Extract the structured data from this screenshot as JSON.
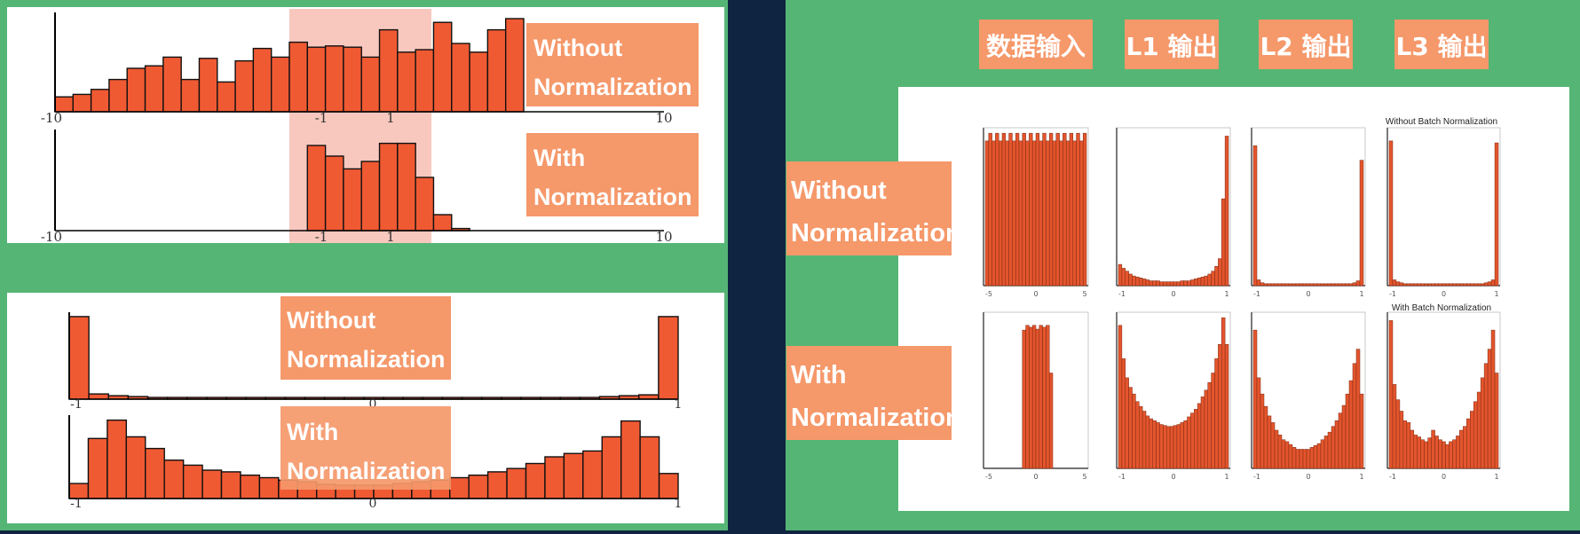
{
  "left": {
    "top_panel": {
      "without_label": [
        "Without",
        "Normalization"
      ],
      "with_label": [
        "With",
        "Normalization"
      ],
      "axis_ticks": [
        "-10",
        "-1",
        "1",
        "10"
      ],
      "without_values": [
        12,
        14,
        18,
        26,
        35,
        37,
        44,
        26,
        43,
        24,
        41,
        51,
        44,
        56,
        52,
        53,
        52,
        44,
        66,
        48,
        50,
        72,
        55,
        48,
        66,
        75
      ],
      "with_values": [
        0,
        0,
        0,
        0,
        0,
        0,
        0,
        0,
        0,
        0,
        0,
        0,
        0,
        0,
        80,
        70,
        58,
        65,
        82,
        82,
        50,
        15,
        2,
        0,
        0,
        0
      ],
      "highlight_range": [
        -1,
        1
      ]
    },
    "bottom_panel": {
      "without_label": [
        "Without",
        "Normalization"
      ],
      "with_label": [
        "With",
        "Normalization"
      ],
      "axis_ticks": [
        "-1",
        "0",
        "1"
      ],
      "without_values": [
        95,
        6,
        4,
        3,
        2,
        2,
        2,
        2,
        2,
        2,
        2,
        2,
        2,
        2,
        2,
        2,
        2,
        2,
        2,
        2,
        2,
        2,
        2,
        2,
        2,
        2,
        2,
        3,
        4,
        5,
        95
      ],
      "with_values": [
        18,
        72,
        94,
        74,
        60,
        46,
        40,
        34,
        32,
        28,
        25,
        22,
        20,
        17,
        16,
        16,
        16,
        18,
        20,
        22,
        25,
        28,
        32,
        36,
        42,
        50,
        54,
        57,
        74,
        93,
        74,
        30
      ]
    }
  },
  "right": {
    "column_headers": [
      "数据输入",
      "L1 输出",
      "L2 输出",
      "L3 输出"
    ],
    "row_labels": [
      [
        "Without",
        "Normalization"
      ],
      [
        "With",
        "Normalization"
      ]
    ],
    "row_titles": [
      "Without Batch Normalization",
      "With Batch Normalization"
    ],
    "input_ticks": [
      "-5",
      "0",
      "5"
    ],
    "layer_ticks": [
      "-1",
      "0",
      "1"
    ],
    "chart_data": {
      "type": "bar",
      "title": "",
      "series": [
        {
          "name": "Without Batch Normalization / 数据输入",
          "values": [
            150,
            158,
            150,
            158,
            150,
            158,
            150,
            158,
            150,
            158,
            150,
            158,
            150,
            158,
            150,
            158,
            150,
            158,
            150,
            158,
            150,
            158,
            150,
            158,
            150,
            158,
            150,
            158,
            150,
            158
          ]
        },
        {
          "name": "Without Batch Normalization / L1 输出",
          "values": [
            22,
            18,
            15,
            12,
            10,
            9,
            8,
            7,
            6,
            5,
            5,
            5,
            4,
            4,
            4,
            4,
            4,
            4,
            5,
            5,
            5,
            6,
            7,
            8,
            9,
            10,
            12,
            15,
            20,
            28,
            90,
            155
          ]
        },
        {
          "name": "Without Batch Normalization / L2 输出",
          "values": [
            145,
            6,
            3,
            2,
            2,
            2,
            2,
            2,
            2,
            2,
            2,
            2,
            2,
            2,
            2,
            2,
            2,
            2,
            2,
            2,
            2,
            2,
            2,
            2,
            2,
            2,
            2,
            2,
            3,
            5,
            130
          ]
        },
        {
          "name": "Without Batch Normalization / L3 输出",
          "values": [
            150,
            6,
            4,
            3,
            2,
            2,
            2,
            2,
            2,
            2,
            2,
            2,
            2,
            2,
            2,
            2,
            2,
            2,
            2,
            2,
            2,
            2,
            2,
            2,
            2,
            2,
            2,
            3,
            4,
            6,
            148
          ]
        },
        {
          "name": "With Batch Normalization / 数据输入",
          "values": [
            0,
            0,
            0,
            0,
            0,
            0,
            0,
            0,
            0,
            0,
            0,
            145,
            150,
            148,
            150,
            146,
            150,
            148,
            150,
            100,
            0,
            0,
            0,
            0,
            0,
            0,
            0,
            0,
            0,
            0
          ]
        },
        {
          "name": "With Batch Normalization / L1 输出",
          "values": [
            150,
            115,
            95,
            85,
            78,
            70,
            65,
            60,
            55,
            52,
            50,
            48,
            46,
            45,
            44,
            44,
            45,
            46,
            48,
            50,
            54,
            58,
            62,
            68,
            75,
            82,
            90,
            100,
            115,
            130,
            158,
            130
          ]
        },
        {
          "name": "With Batch Normalization / L2 输出",
          "values": [
            145,
            95,
            78,
            65,
            55,
            48,
            40,
            35,
            30,
            28,
            25,
            22,
            20,
            20,
            20,
            20,
            22,
            24,
            26,
            30,
            34,
            38,
            44,
            50,
            58,
            66,
            78,
            92,
            110,
            125,
            78
          ]
        },
        {
          "name": "With Batch Normalization / L3 输出",
          "values": [
            155,
            88,
            72,
            60,
            50,
            48,
            40,
            35,
            33,
            30,
            28,
            32,
            40,
            34,
            30,
            28,
            25,
            28,
            30,
            34,
            40,
            44,
            52,
            60,
            70,
            80,
            95,
            110,
            125,
            145,
            100
          ]
        }
      ]
    }
  }
}
